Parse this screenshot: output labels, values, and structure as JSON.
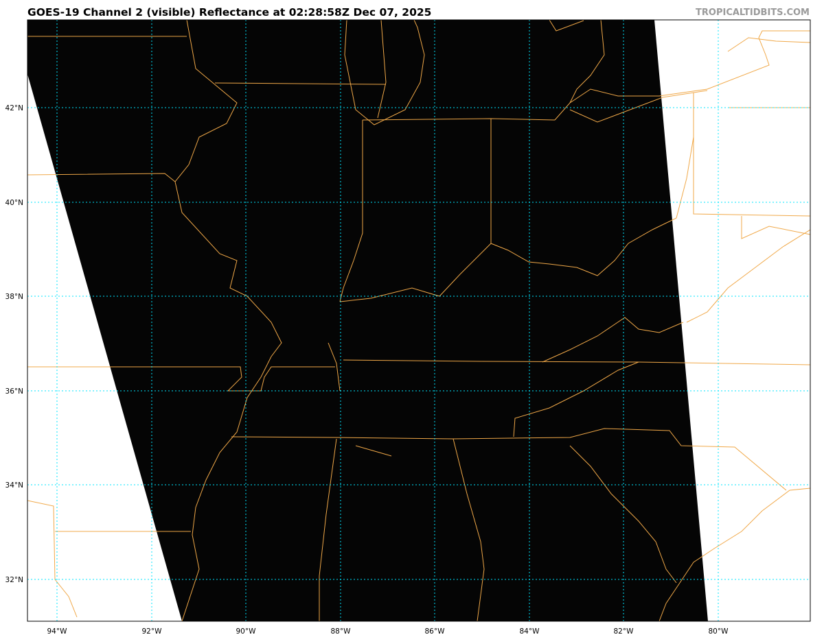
{
  "header": {
    "title": "GOES-19 Channel 2 (visible) Reflectance at 02:28:58Z Dec 07, 2025",
    "watermark": "TROPICALTIDBITS.COM"
  },
  "map": {
    "extent": {
      "lon_min": -94.6,
      "lon_max": -78.1,
      "lat_min": 31.1,
      "lat_max": 43.9
    },
    "colors": {
      "background": "#000000",
      "no_data": "#ffffff",
      "borders": "#f0a848",
      "gridlines": "#00ffff"
    },
    "lat_labels": [
      "42°N",
      "40°N",
      "38°N",
      "36°N",
      "34°N",
      "32°N"
    ],
    "lon_labels": [
      "94°W",
      "92°W",
      "90°W",
      "88°W",
      "86°W",
      "84°W",
      "82°W",
      "80°W"
    ]
  }
}
